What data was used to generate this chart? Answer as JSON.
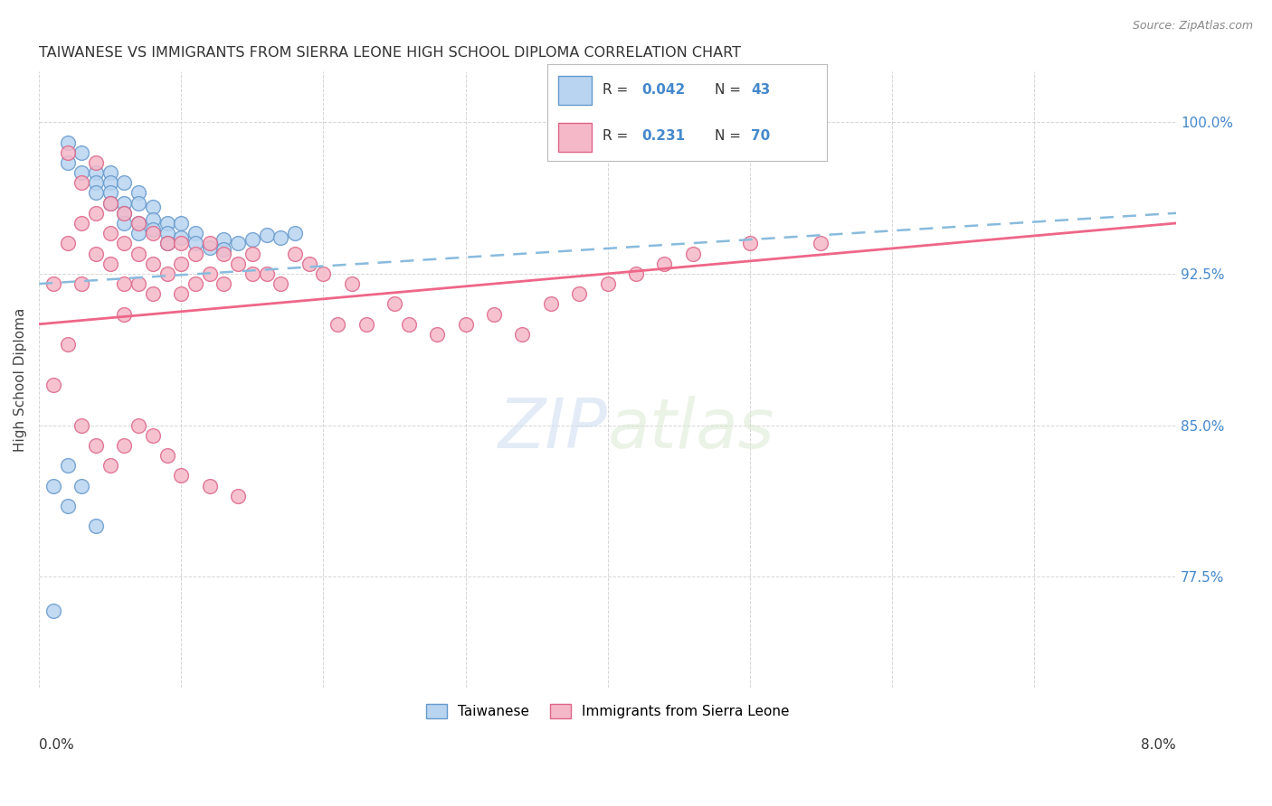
{
  "title": "TAIWANESE VS IMMIGRANTS FROM SIERRA LEONE HIGH SCHOOL DIPLOMA CORRELATION CHART",
  "source": "Source: ZipAtlas.com",
  "ylabel": "High School Diploma",
  "xlim": [
    0.0,
    0.08
  ],
  "ylim": [
    0.72,
    1.025
  ],
  "yticks": [
    0.775,
    0.85,
    0.925,
    1.0
  ],
  "ytick_labels": [
    "77.5%",
    "85.0%",
    "92.5%",
    "100.0%"
  ],
  "background_color": "#ffffff",
  "taiwanese_color": "#b8d4f0",
  "sierra_leone_color": "#f5b8c8",
  "taiwanese_edge_color": "#6699cc",
  "sierra_leone_edge_color": "#dd6688",
  "taiwanese_line_color": "#88bbdd",
  "sierra_leone_line_color": "#ee6688",
  "R_taiwanese": 0.042,
  "N_taiwanese": 43,
  "R_sierra_leone": 0.231,
  "N_sierra_leone": 70,
  "tw_x": [
    0.001,
    0.002,
    0.002,
    0.003,
    0.003,
    0.004,
    0.004,
    0.004,
    0.005,
    0.005,
    0.005,
    0.005,
    0.006,
    0.006,
    0.006,
    0.006,
    0.007,
    0.007,
    0.007,
    0.007,
    0.008,
    0.008,
    0.008,
    0.009,
    0.009,
    0.009,
    0.01,
    0.01,
    0.011,
    0.011,
    0.012,
    0.013,
    0.013,
    0.014,
    0.015,
    0.016,
    0.017,
    0.018,
    0.002,
    0.003,
    0.001,
    0.002,
    0.004
  ],
  "tw_y": [
    0.758,
    0.99,
    0.98,
    0.985,
    0.975,
    0.975,
    0.97,
    0.965,
    0.975,
    0.97,
    0.965,
    0.96,
    0.97,
    0.96,
    0.955,
    0.95,
    0.965,
    0.96,
    0.95,
    0.945,
    0.958,
    0.952,
    0.947,
    0.95,
    0.945,
    0.94,
    0.95,
    0.943,
    0.945,
    0.94,
    0.938,
    0.942,
    0.937,
    0.94,
    0.942,
    0.944,
    0.943,
    0.945,
    0.83,
    0.82,
    0.82,
    0.81,
    0.8
  ],
  "sl_x": [
    0.001,
    0.001,
    0.002,
    0.002,
    0.002,
    0.003,
    0.003,
    0.003,
    0.004,
    0.004,
    0.004,
    0.005,
    0.005,
    0.005,
    0.006,
    0.006,
    0.006,
    0.006,
    0.007,
    0.007,
    0.007,
    0.008,
    0.008,
    0.008,
    0.009,
    0.009,
    0.01,
    0.01,
    0.01,
    0.011,
    0.011,
    0.012,
    0.012,
    0.013,
    0.013,
    0.014,
    0.015,
    0.015,
    0.016,
    0.017,
    0.018,
    0.019,
    0.02,
    0.021,
    0.022,
    0.023,
    0.025,
    0.026,
    0.028,
    0.03,
    0.032,
    0.034,
    0.036,
    0.038,
    0.04,
    0.042,
    0.044,
    0.046,
    0.05,
    0.055,
    0.003,
    0.004,
    0.005,
    0.006,
    0.007,
    0.008,
    0.009,
    0.01,
    0.012,
    0.014
  ],
  "sl_y": [
    0.87,
    0.92,
    0.89,
    0.94,
    0.985,
    0.97,
    0.95,
    0.92,
    0.98,
    0.955,
    0.935,
    0.945,
    0.93,
    0.96,
    0.955,
    0.94,
    0.92,
    0.905,
    0.95,
    0.935,
    0.92,
    0.945,
    0.93,
    0.915,
    0.94,
    0.925,
    0.94,
    0.93,
    0.915,
    0.935,
    0.92,
    0.94,
    0.925,
    0.935,
    0.92,
    0.93,
    0.935,
    0.925,
    0.925,
    0.92,
    0.935,
    0.93,
    0.925,
    0.9,
    0.92,
    0.9,
    0.91,
    0.9,
    0.895,
    0.9,
    0.905,
    0.895,
    0.91,
    0.915,
    0.92,
    0.925,
    0.93,
    0.935,
    0.94,
    0.94,
    0.85,
    0.84,
    0.83,
    0.84,
    0.85,
    0.845,
    0.835,
    0.825,
    0.82,
    0.815
  ]
}
